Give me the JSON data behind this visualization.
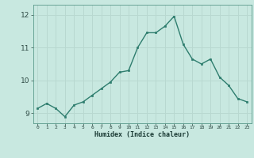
{
  "x": [
    0,
    1,
    2,
    3,
    4,
    5,
    6,
    7,
    8,
    9,
    10,
    11,
    12,
    13,
    14,
    15,
    16,
    17,
    18,
    19,
    20,
    21,
    22,
    23
  ],
  "y": [
    9.15,
    9.3,
    9.15,
    8.9,
    9.25,
    9.35,
    9.55,
    9.75,
    9.95,
    10.25,
    10.3,
    11.0,
    11.45,
    11.45,
    11.65,
    11.95,
    11.1,
    10.65,
    10.5,
    10.65,
    10.1,
    9.85,
    9.45,
    9.35
  ],
  "line_color": "#2e7d6e",
  "marker_color": "#2e7d6e",
  "bg_color": "#c8e8e0",
  "grid_color": "#b8d8d0",
  "xlabel": "Humidex (Indice chaleur)",
  "xlim": [
    -0.5,
    23.5
  ],
  "ylim": [
    8.7,
    12.3
  ],
  "yticks": [
    9,
    10,
    11,
    12
  ],
  "xticks": [
    0,
    1,
    2,
    3,
    4,
    5,
    6,
    7,
    8,
    9,
    10,
    11,
    12,
    13,
    14,
    15,
    16,
    17,
    18,
    19,
    20,
    21,
    22,
    23
  ],
  "figsize": [
    3.2,
    2.0
  ],
  "dpi": 100
}
